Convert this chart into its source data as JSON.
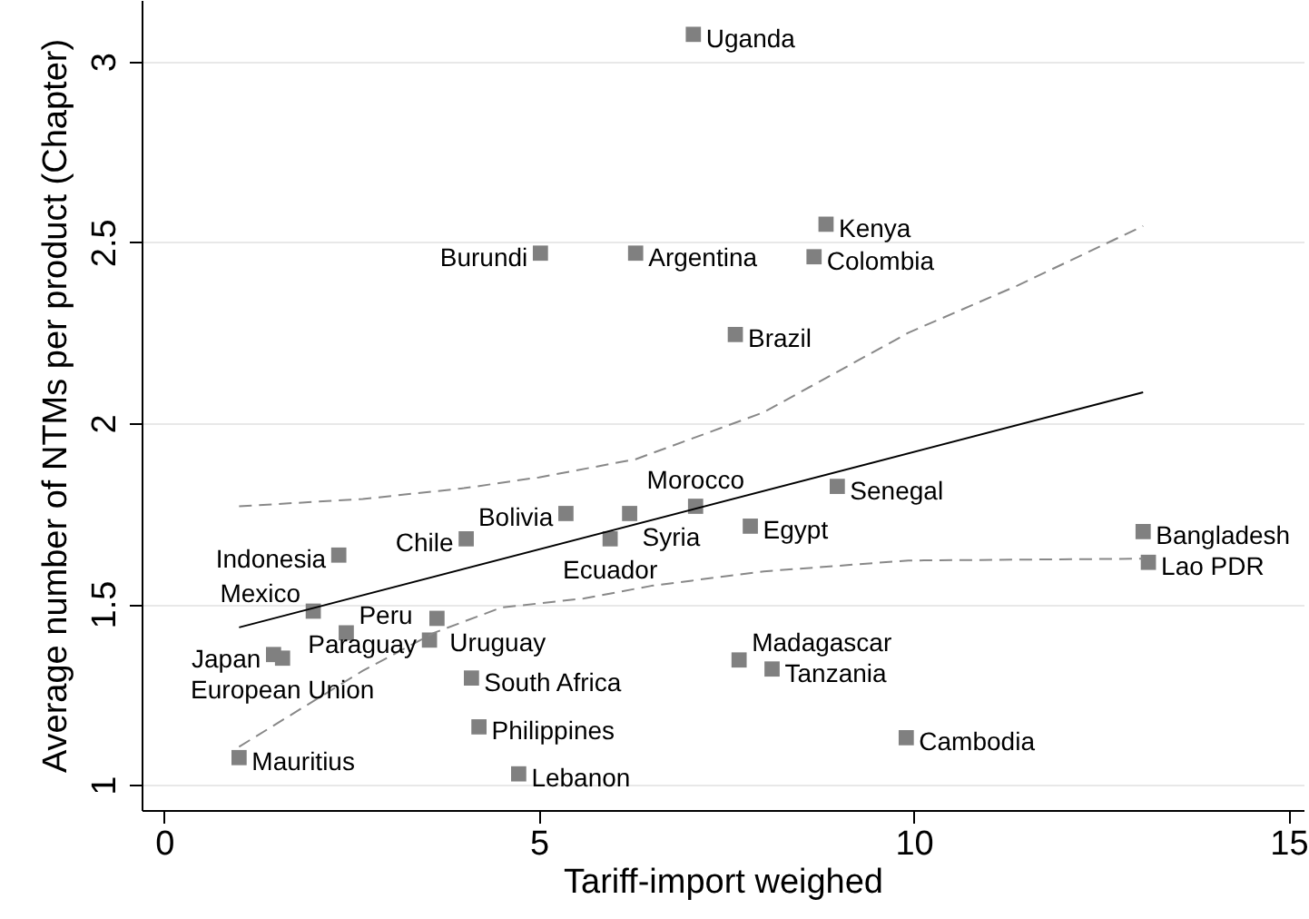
{
  "chart_data": {
    "type": "scatter",
    "xlabel": "Tariff-import weighed",
    "ylabel": "Average number of NTMs per product (Chapter)",
    "xlim": [
      -0.3,
      15.2
    ],
    "ylim": [
      0.93,
      3.17
    ],
    "xticks": [
      0,
      5,
      10,
      15
    ],
    "yticks": [
      1,
      1.5,
      2,
      2.5,
      3
    ],
    "grid": "y",
    "series": [
      {
        "type": "scatter",
        "color": "#808080",
        "marker": "square",
        "x": [
          7.06,
          8.83,
          5.02,
          6.29,
          8.67,
          7.62,
          8.98,
          13.06,
          13.13,
          7.82,
          7.09,
          6.21,
          5.36,
          5.95,
          4.03,
          2.33,
          1.99,
          3.64,
          2.43,
          3.54,
          1.46,
          1.58,
          4.1,
          4.2,
          1.0,
          4.73,
          7.67,
          8.11,
          9.9
        ],
        "values": [
          3.075,
          2.55,
          2.47,
          2.47,
          2.46,
          2.245,
          1.825,
          1.7,
          1.615,
          1.715,
          1.77,
          1.75,
          1.75,
          1.68,
          1.68,
          1.635,
          1.48,
          1.46,
          1.42,
          1.4,
          1.36,
          1.35,
          1.295,
          1.16,
          1.075,
          1.03,
          1.345,
          1.32,
          1.13
        ]
      },
      {
        "type": "line",
        "color": "#000000",
        "line_style": "solid",
        "marker": "none",
        "x": [
          1.0,
          13.06
        ],
        "values": [
          1.435,
          2.085
        ]
      },
      {
        "type": "line",
        "color": "#888888",
        "line_style": "dashed",
        "marker": "none",
        "x": [
          1.0,
          2.65,
          4.0,
          5.0,
          6.29,
          8.0,
          9.93,
          11.38,
          13.06
        ],
        "values": [
          1.77,
          1.79,
          1.82,
          1.85,
          1.9,
          2.03,
          2.25,
          2.38,
          2.545
        ]
      },
      {
        "type": "line",
        "color": "#888888",
        "line_style": "dashed",
        "marker": "none",
        "x": [
          1.0,
          2.65,
          3.6,
          4.5,
          5.6,
          6.5,
          8.0,
          9.93,
          13.06
        ],
        "values": [
          1.105,
          1.315,
          1.42,
          1.49,
          1.515,
          1.55,
          1.59,
          1.62,
          1.625
        ]
      }
    ],
    "annotations": [
      {
        "text": "Uganda",
        "x": 7.06,
        "y": 3.075
      },
      {
        "text": "Kenya",
        "x": 8.83,
        "y": 2.55
      },
      {
        "text": "Burundi",
        "x": 5.02,
        "y": 2.47
      },
      {
        "text": "Argentina",
        "x": 6.29,
        "y": 2.47
      },
      {
        "text": "Colombia",
        "x": 8.67,
        "y": 2.46
      },
      {
        "text": "Brazil",
        "x": 7.62,
        "y": 2.245
      },
      {
        "text": "Senegal",
        "x": 8.98,
        "y": 1.825
      },
      {
        "text": "Bangladesh",
        "x": 13.06,
        "y": 1.7
      },
      {
        "text": "Lao PDR",
        "x": 13.13,
        "y": 1.615
      },
      {
        "text": "Egypt",
        "x": 7.82,
        "y": 1.715
      },
      {
        "text": "Morocco",
        "x": 7.09,
        "y": 1.77
      },
      {
        "text": "Syria",
        "x": 6.21,
        "y": 1.75
      },
      {
        "text": "Bolivia",
        "x": 5.36,
        "y": 1.75
      },
      {
        "text": "Ecuador",
        "x": 5.95,
        "y": 1.68
      },
      {
        "text": "Chile",
        "x": 4.03,
        "y": 1.68
      },
      {
        "text": "Indonesia",
        "x": 2.33,
        "y": 1.635
      },
      {
        "text": "Mexico",
        "x": 1.99,
        "y": 1.48
      },
      {
        "text": "Uruguay",
        "x": 3.64,
        "y": 1.46
      },
      {
        "text": "Peru",
        "x": 2.43,
        "y": 1.42
      },
      {
        "text": "Paraguay",
        "x": 3.54,
        "y": 1.4
      },
      {
        "text": "Japan",
        "x": 1.46,
        "y": 1.36
      },
      {
        "text": "European Union",
        "x": 1.58,
        "y": 1.35
      },
      {
        "text": "South Africa",
        "x": 4.1,
        "y": 1.295
      },
      {
        "text": "Philippines",
        "x": 4.2,
        "y": 1.16
      },
      {
        "text": "Mauritius",
        "x": 1.0,
        "y": 1.075
      },
      {
        "text": "Lebanon",
        "x": 4.73,
        "y": 1.03
      },
      {
        "text": "Madagascar",
        "x": 7.67,
        "y": 1.345
      },
      {
        "text": "Tanzania",
        "x": 8.11,
        "y": 1.32
      },
      {
        "text": "Cambodia",
        "x": 9.9,
        "y": 1.13
      }
    ]
  }
}
